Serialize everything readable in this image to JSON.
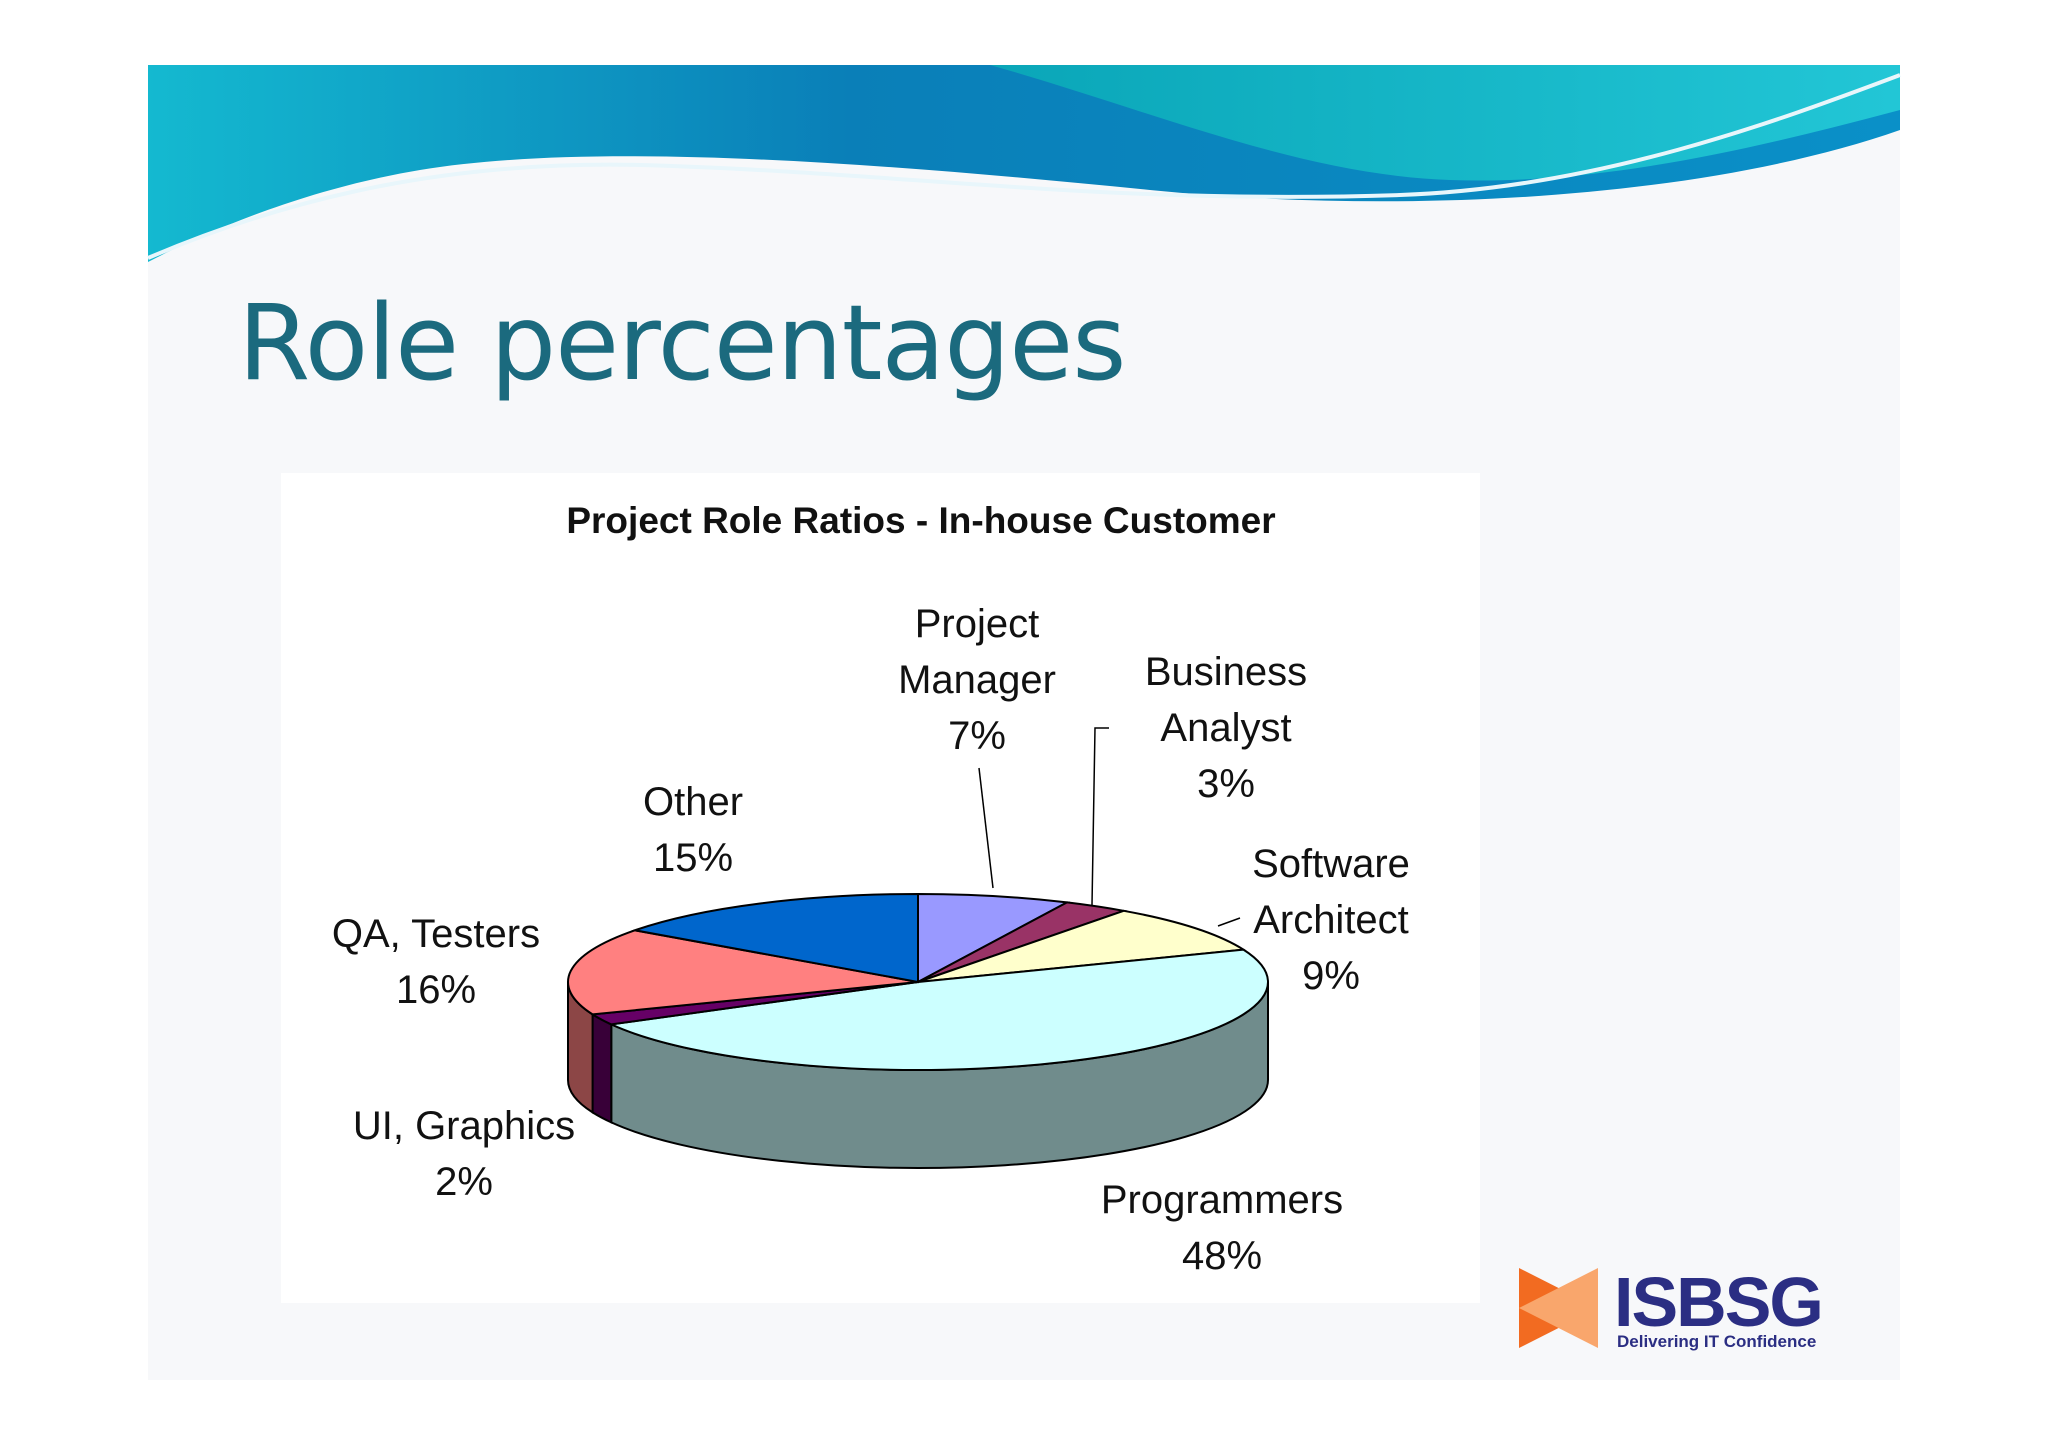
{
  "slide_title": "Role percentages",
  "chart_data": {
    "type": "pie",
    "title": "Project Role Ratios - In-house Customer",
    "categories": [
      "Project Manager",
      "Business Analyst",
      "Software Architect",
      "Programmers",
      "UI, Graphics",
      "QA, Testers",
      "Other"
    ],
    "values": [
      7,
      3,
      9,
      48,
      2,
      16,
      15
    ],
    "value_labels": [
      "7%",
      "3%",
      "9%",
      "48%",
      "2%",
      "16%",
      "15%"
    ],
    "colors": [
      "#9999ff",
      "#993366",
      "#ffffcc",
      "#ccffff",
      "#660066",
      "#ff8080",
      "#0066cc"
    ]
  },
  "logo": {
    "name": "ISBSG",
    "tagline": "Delivering IT Confidence"
  }
}
